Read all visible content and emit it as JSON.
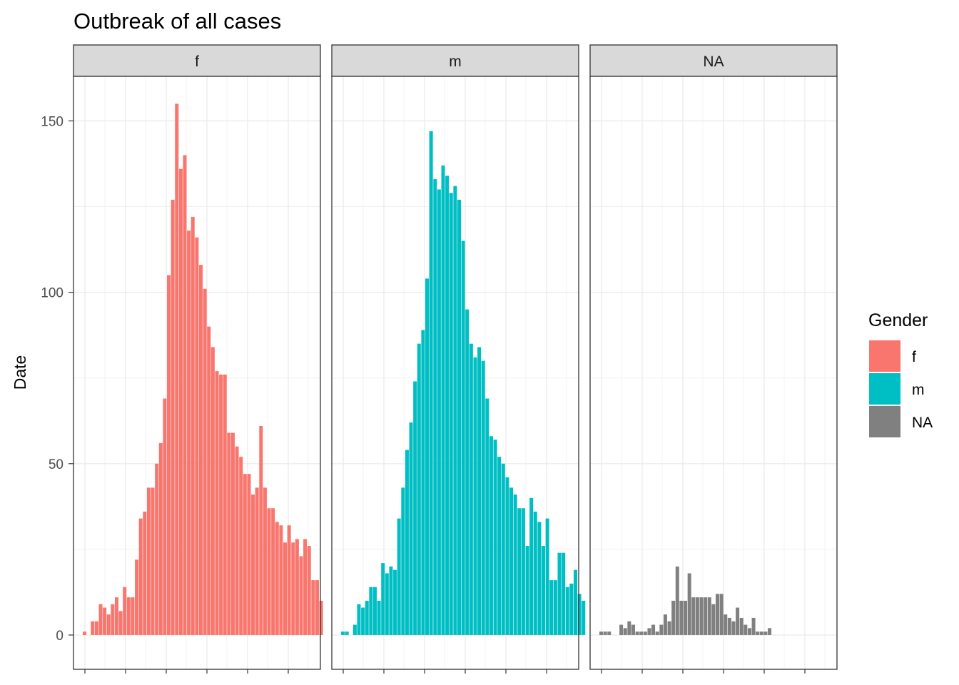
{
  "chart_data": {
    "type": "bar",
    "title": "Outbreak of all cases",
    "xlabel": "",
    "ylabel": "Date",
    "ylim": [
      -10,
      163
    ],
    "y_ticks": [
      0,
      50,
      100,
      150
    ],
    "grid": true,
    "theme": "bw",
    "facet_by": "Gender",
    "legend": {
      "title": "Gender",
      "position": "right",
      "entries": [
        {
          "label": "f",
          "color": "#F8766D"
        },
        {
          "label": "m",
          "color": "#00BFC4"
        },
        {
          "label": "NA",
          "color": "#808080"
        }
      ]
    },
    "panels": [
      {
        "strip": "f",
        "color": "#F8766D",
        "values": [
          1,
          0,
          4,
          4,
          9,
          8,
          6,
          9,
          11,
          7,
          14,
          11,
          11,
          22,
          34,
          36,
          43,
          43,
          50,
          56,
          69,
          105,
          127,
          155,
          136,
          140,
          118,
          122,
          116,
          108,
          101,
          90,
          84,
          77,
          76,
          76,
          59,
          59,
          55,
          52,
          47,
          47,
          41,
          43,
          61,
          43,
          37,
          37,
          33,
          32,
          27,
          32,
          27,
          28,
          23,
          28,
          26,
          16,
          16,
          10
        ]
      },
      {
        "strip": "m",
        "color": "#00BFC4",
        "values": [
          1,
          1,
          0,
          3,
          9,
          8,
          10,
          14,
          14,
          10,
          21,
          18,
          20,
          19,
          34,
          43,
          54,
          62,
          74,
          85,
          89,
          104,
          147,
          133,
          130,
          137,
          134,
          129,
          131,
          127,
          115,
          95,
          85,
          81,
          84,
          80,
          69,
          58,
          57,
          52,
          50,
          46,
          43,
          41,
          37,
          37,
          26,
          40,
          36,
          33,
          26,
          34,
          16,
          16,
          24,
          24,
          14,
          15,
          19,
          12,
          10
        ]
      },
      {
        "strip": "NA",
        "color": "#808080",
        "values": [
          1,
          1,
          1,
          0,
          0,
          3,
          2,
          4,
          3,
          1,
          1,
          1,
          2,
          3,
          1,
          3,
          6,
          4,
          10,
          20,
          10,
          10,
          18,
          11,
          11,
          11,
          11,
          11,
          9,
          12,
          12,
          6,
          5,
          4,
          8,
          5,
          3,
          2,
          5,
          1,
          1,
          1,
          2
        ]
      }
    ]
  }
}
